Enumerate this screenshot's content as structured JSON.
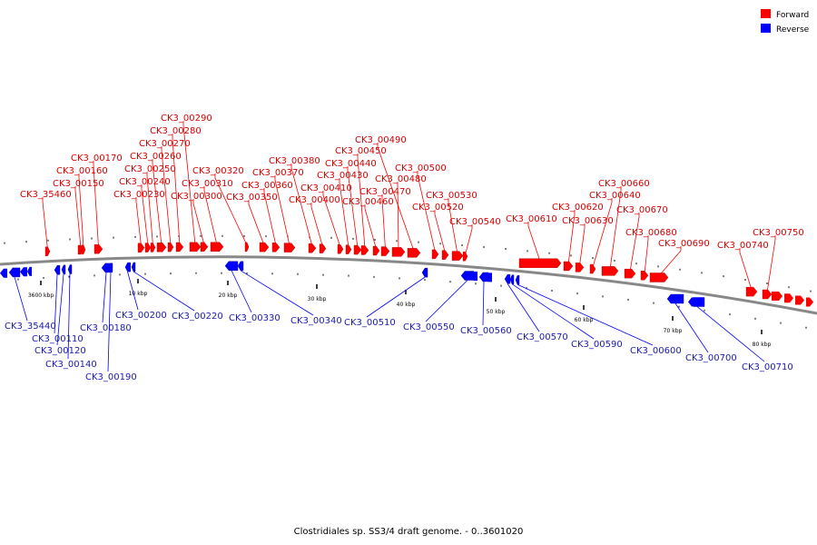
{
  "title": "Clostridiales sp. SS3/4 draft genome. - 0..3601020",
  "legend": [
    {
      "label": "Forward",
      "color": "#ff0000"
    },
    {
      "label": "Reverse",
      "color": "#0000ff"
    }
  ],
  "colors": {
    "forward": "#ff0000",
    "reverse": "#0000ff",
    "forward_label": "#d80000",
    "reverse_label": "#1a1ab0",
    "backbone": "#888888"
  },
  "scale_ticks": [
    "3600 kbp",
    "10 kbp",
    "20 kbp",
    "30 kbp",
    "40 kbp",
    "50 kbp",
    "60 kbp",
    "70 kbp",
    "80 kbp"
  ],
  "forward_genes": [
    "CK3_35460",
    "CK3_00150",
    "CK3_00160",
    "CK3_00170",
    "CK3_00230",
    "CK3_00240",
    "CK3_00250",
    "CK3_00260",
    "CK3_00270",
    "CK3_00280",
    "CK3_00290",
    "CK3_00300",
    "CK3_00310",
    "CK3_00320",
    "CK3_00350",
    "CK3_00360",
    "CK3_00370",
    "CK3_00380",
    "CK3_00400",
    "CK3_00410",
    "CK3_00430",
    "CK3_00440",
    "CK3_00450",
    "CK3_00460",
    "CK3_00470",
    "CK3_00480",
    "CK3_00490",
    "CK3_00500",
    "CK3_00520",
    "CK3_00530",
    "CK3_00540",
    "CK3_00610",
    "CK3_00620",
    "CK3_00630",
    "CK3_00640",
    "CK3_00660",
    "CK3_00670",
    "CK3_00680",
    "CK3_00690",
    "CK3_00740",
    "CK3_00750"
  ],
  "reverse_genes": [
    "CK3_35440",
    "CK3_00110",
    "CK3_00120",
    "CK3_00140",
    "CK3_00180",
    "CK3_00190",
    "CK3_00200",
    "CK3_00220",
    "CK3_00330",
    "CK3_00340",
    "CK3_00510",
    "CK3_00550",
    "CK3_00560",
    "CK3_00570",
    "CK3_00590",
    "CK3_00600",
    "CK3_00700",
    "CK3_00710"
  ]
}
